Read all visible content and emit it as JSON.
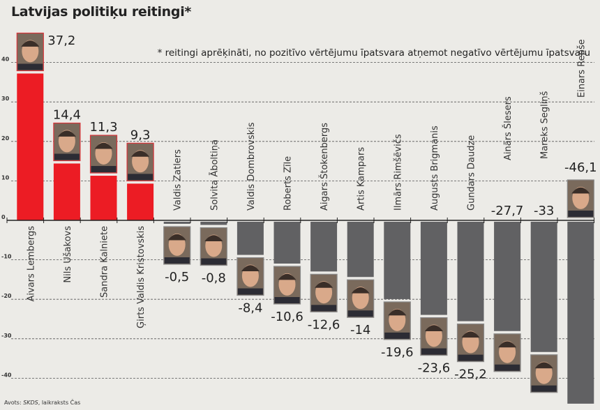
{
  "chart_data": {
    "type": "bar",
    "title": "Latvijas politiķu reitingi*",
    "footnote": "* reitingi aprēķināti, no pozitīvo vērtējumu īpatsvara atņemot negatīvo vērtējumu īpatsvaru",
    "source_prefix": "Avots: ",
    "source_italic": "SKDS",
    "source_suffix": ", laikraksts Čas",
    "xlabel": "",
    "ylabel": "",
    "ylim": [
      -46.1,
      40
    ],
    "yticks": [
      40,
      30,
      20,
      10,
      0,
      -10,
      -20,
      -30,
      -40
    ],
    "grid": true,
    "categories": [
      "Aivars Lembergs",
      "Nils Ušakovs",
      "Sandra Kalniete",
      "Ģirts Valdis Kristovskis",
      "Valdis Zatlers",
      "Solvita Āboltiņa",
      "Valdis Dombrovskis",
      "Roberts Zīle",
      "Aigars Štokenbergs",
      "Artis Kampars",
      "Ilmārs Rimšēvičs",
      "Augusts Brigmanis",
      "Gundars Daudze",
      "Ainārs Šlesers",
      "Mareks Segliņš",
      "Einars Repše"
    ],
    "values": [
      37.2,
      14.4,
      11.3,
      9.3,
      -0.5,
      -0.8,
      -8.4,
      -10.6,
      -12.6,
      -14,
      -19.6,
      -23.6,
      -25.2,
      -27.7,
      -33,
      -46.1
    ],
    "value_labels": [
      "37,2",
      "14,4",
      "11,3",
      "9,3",
      "-0,5",
      "-0,8",
      "-8,4",
      "-10,6",
      "-12,6",
      "-14",
      "-19,6",
      "-23,6",
      "-25,2",
      "-27,7",
      "-33",
      "-46,1"
    ],
    "colors": {
      "positive": "#ec1c24",
      "negative": "#616163",
      "photo_border_positive": "#d9343a",
      "photo_border_negative": "#8a8a8a"
    }
  }
}
